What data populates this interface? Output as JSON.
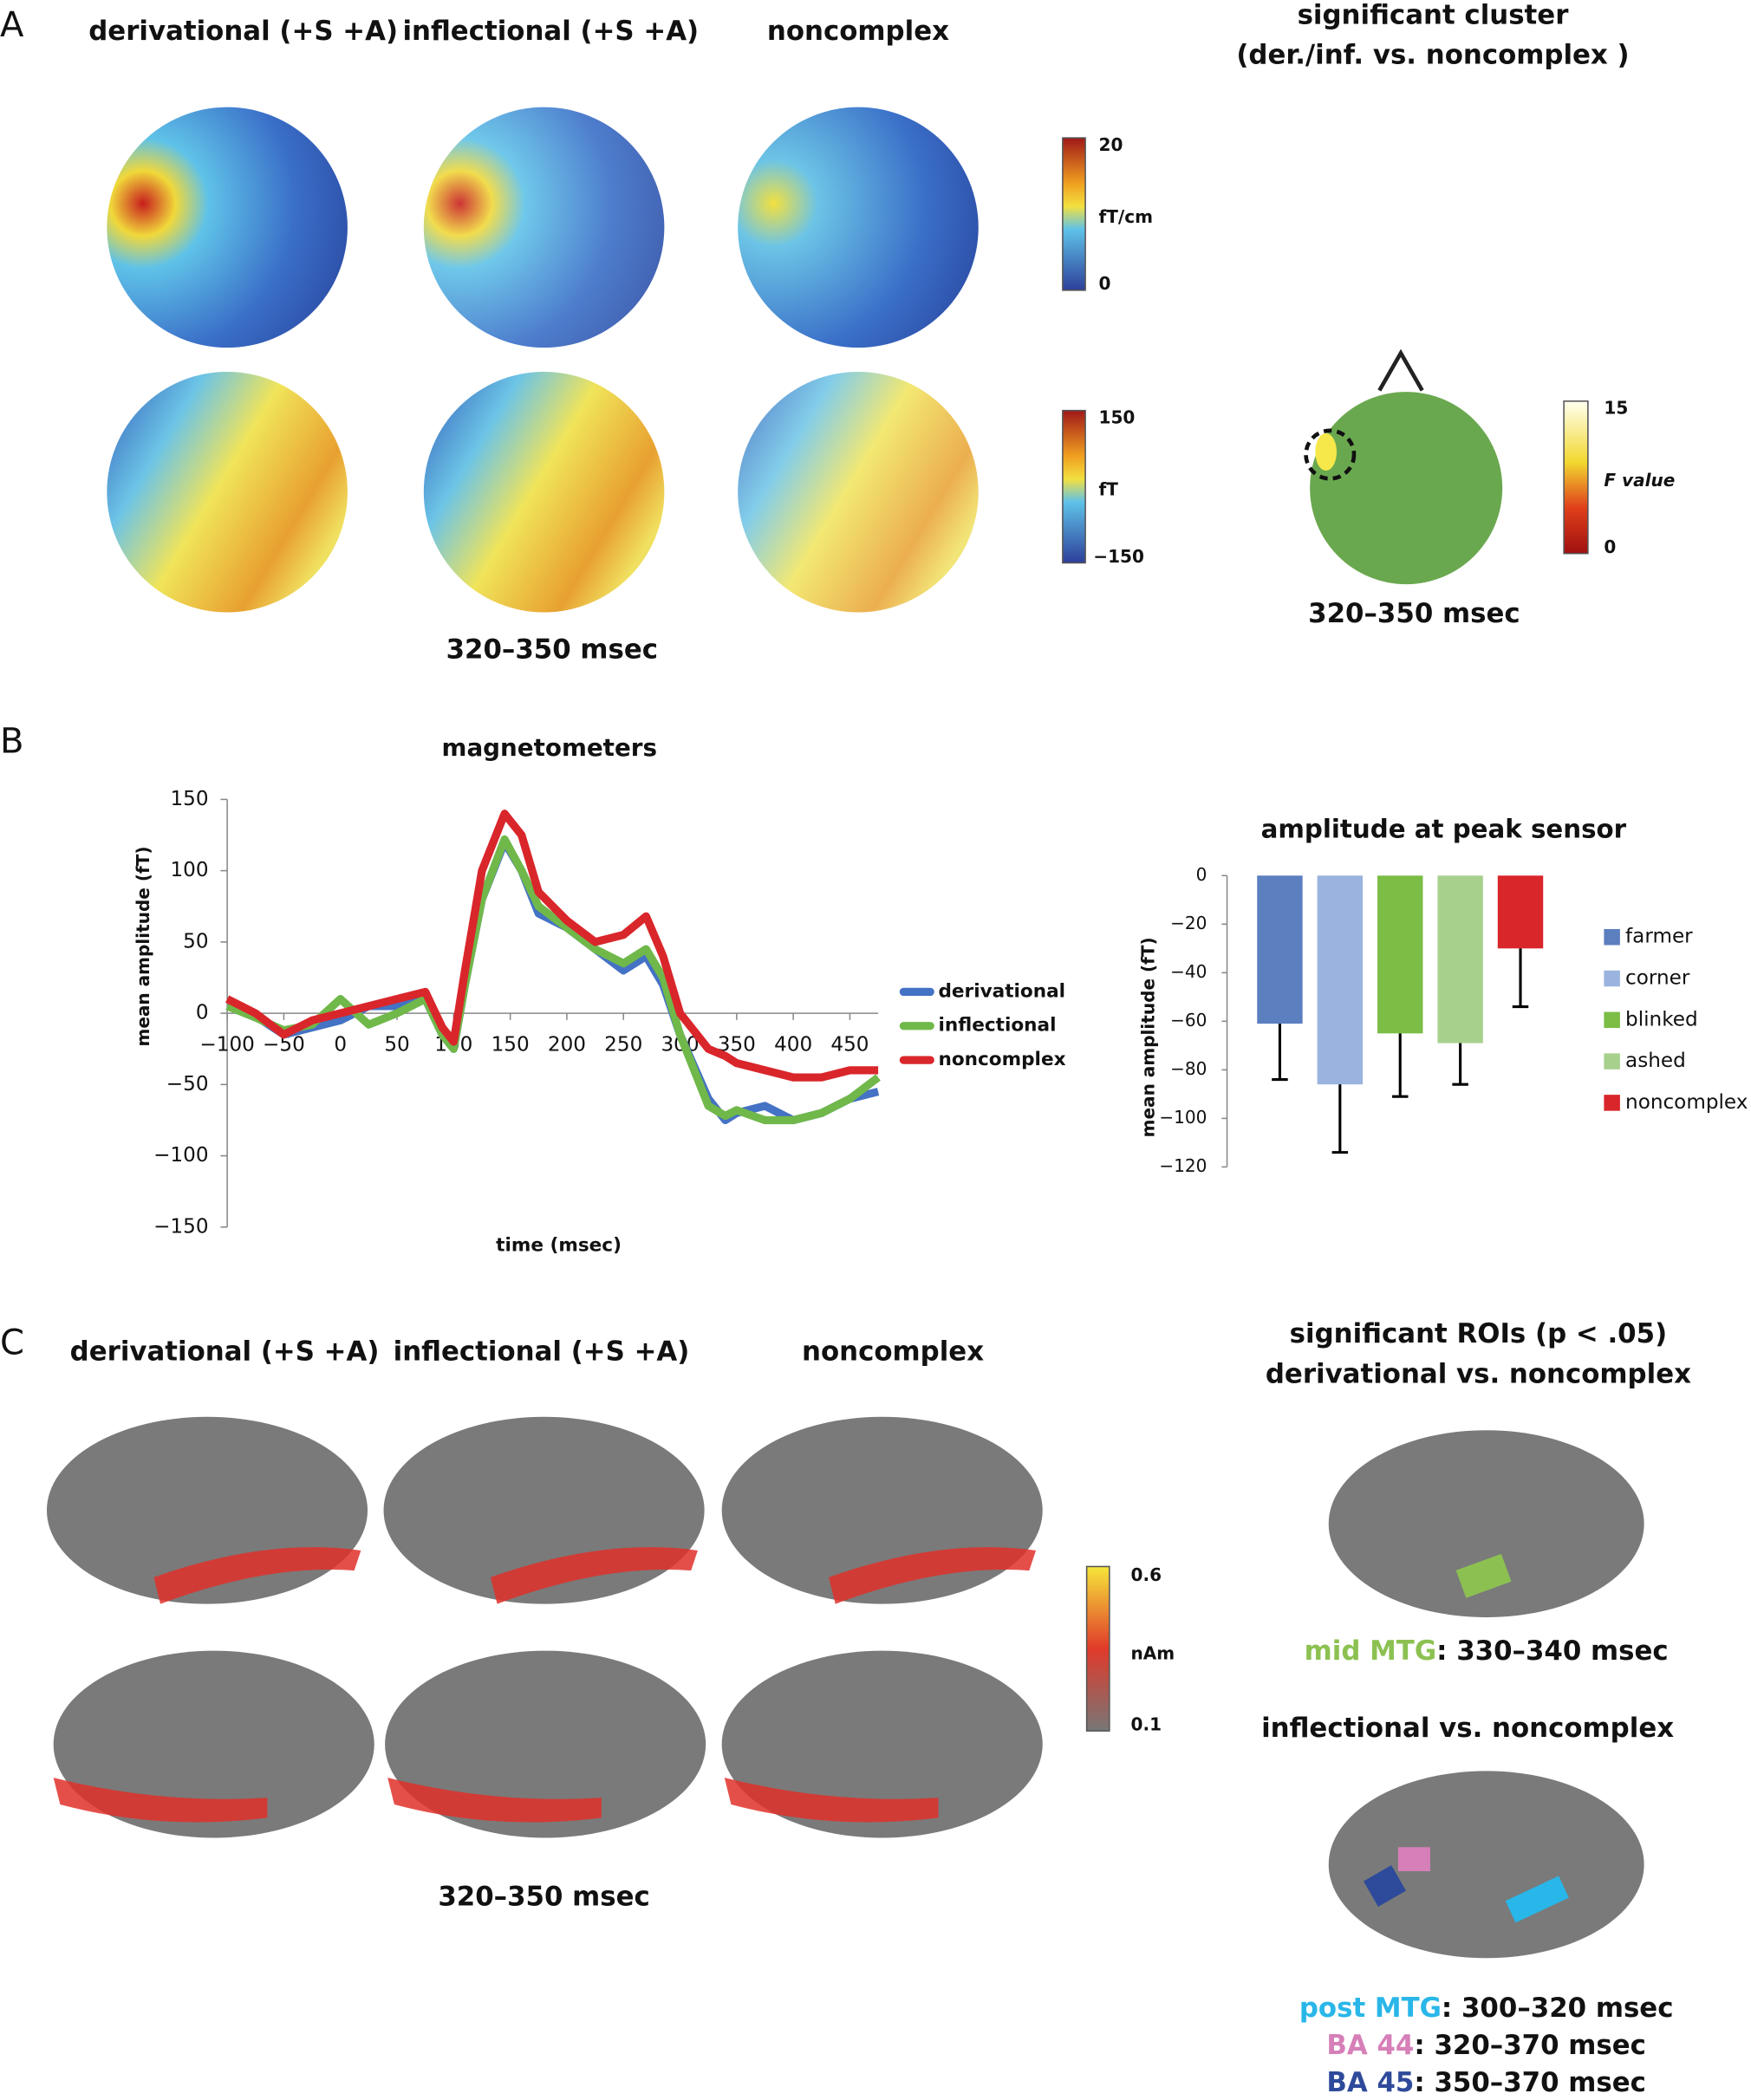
{
  "panel_a": {
    "label": "A",
    "titles": [
      "derivational (+S +A)",
      "inflectional (+S +A)",
      "noncomplex"
    ],
    "time": "320–350 msec",
    "gradiometer_scale": [
      "20",
      "fT/cm",
      "0"
    ],
    "magnetometer_scale": [
      "150",
      "fT",
      "−150"
    ],
    "cluster_title": [
      "significant cluster",
      "(der./inf. vs. noncomplex )"
    ],
    "f_scale": [
      "15",
      "F value",
      "0"
    ],
    "cluster_time": "320–350 msec"
  },
  "panel_b": {
    "label": "B"
  },
  "panel_c": {
    "label": "C",
    "titles": [
      "derivational (+S +A)",
      "inflectional (+S +A)",
      "noncomplex"
    ],
    "scale": [
      "0.6",
      "nAm",
      "0.1"
    ],
    "time": "320–350 msec",
    "roi_title": [
      "significant ROIs (p < .05)",
      "derivational vs. noncomplex"
    ],
    "roi_der": [
      {
        "name": "mid MTG",
        "rest": ": 330–340 msec",
        "color": "#8cc152"
      }
    ],
    "roi_inf_title": "inflectional vs. noncomplex",
    "roi_inf": [
      {
        "name": "post MTG",
        "rest": ": 300–320 msec",
        "color": "#29b6e8"
      },
      {
        "name": "BA 44",
        "rest": ": 320–370 msec",
        "color": "#d67fb8"
      },
      {
        "name": "BA 45",
        "rest": ": 350–370 msec",
        "color": "#2e4a9a"
      }
    ]
  },
  "chart_data": [
    {
      "type": "line",
      "title": "magnetometers",
      "x_label": "time (msec)",
      "y_label": "mean amplitude (fT)",
      "x": [
        -100,
        -75,
        -50,
        -25,
        0,
        25,
        50,
        75,
        90,
        100,
        110,
        125,
        145,
        160,
        175,
        200,
        225,
        250,
        270,
        285,
        300,
        325,
        340,
        350,
        375,
        400,
        425,
        450,
        475
      ],
      "series": [
        {
          "name": "derivational",
          "color": "#4472c4",
          "values": [
            5,
            -2,
            -15,
            -10,
            -5,
            5,
            5,
            10,
            -15,
            -25,
            20,
            80,
            120,
            100,
            70,
            60,
            45,
            30,
            40,
            20,
            -15,
            -60,
            -75,
            -70,
            -65,
            -75,
            -70,
            -60,
            -55
          ]
        },
        {
          "name": "inflectional",
          "color": "#70b84a",
          "values": [
            5,
            -3,
            -12,
            -8,
            10,
            -8,
            0,
            10,
            -15,
            -25,
            20,
            80,
            122,
            100,
            75,
            60,
            45,
            35,
            45,
            25,
            -15,
            -65,
            -72,
            -68,
            -75,
            -75,
            -70,
            -60,
            -45
          ]
        },
        {
          "name": "noncomplex",
          "color": "#d9262b",
          "values": [
            10,
            0,
            -15,
            -5,
            0,
            5,
            10,
            15,
            -10,
            -20,
            30,
            100,
            140,
            125,
            85,
            65,
            50,
            55,
            68,
            40,
            0,
            -25,
            -30,
            -35,
            -40,
            -45,
            -45,
            -40,
            -40
          ]
        }
      ],
      "xlim": [
        -100,
        475
      ],
      "xticks": [
        {
          "value": -100,
          "label": "−100"
        },
        {
          "value": -50,
          "label": "−50"
        },
        0,
        50,
        100,
        150,
        200,
        250,
        300,
        350,
        400,
        450
      ],
      "ylim": [
        -150,
        150
      ],
      "yticks": [
        {
          "value": -150,
          "label": "−150"
        },
        {
          "value": -100,
          "label": "−100"
        },
        {
          "value": -50,
          "label": "−50"
        },
        0,
        50,
        100,
        150
      ]
    },
    {
      "type": "bar",
      "title": "amplitude at peak sensor",
      "y_label": "mean amplitude (fT)",
      "categories": [
        "farmer",
        "corner",
        "blinked",
        "ashed",
        "noncomplex"
      ],
      "values": [
        -61,
        -86,
        -65,
        -69,
        -30
      ],
      "errors": [
        23,
        28,
        26,
        17,
        24
      ],
      "colors": [
        "#5b7fbf",
        "#9ab4df",
        "#7bbd45",
        "#a8d08d",
        "#d9262b"
      ],
      "ylim": [
        -120,
        0
      ],
      "yticks": [
        0,
        {
          "value": -20,
          "label": "−20"
        },
        {
          "value": -40,
          "label": "−40"
        },
        {
          "value": -60,
          "label": "−60"
        },
        {
          "value": -80,
          "label": "−80"
        },
        {
          "value": -100,
          "label": "−100"
        },
        {
          "value": -120,
          "label": "−120"
        }
      ]
    }
  ]
}
